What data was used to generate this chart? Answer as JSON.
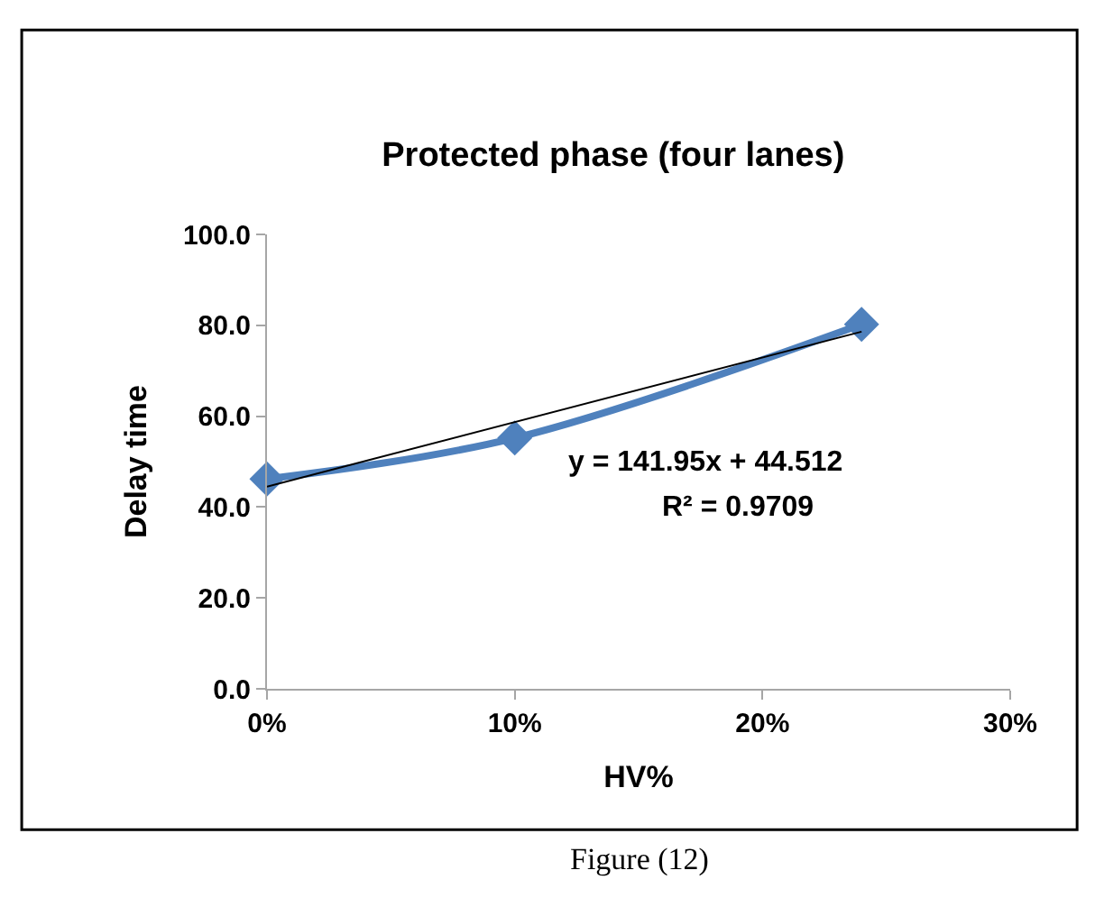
{
  "chart_data": {
    "type": "line",
    "title": "Protected phase (four lanes)",
    "xlabel": "HV%",
    "ylabel": "Delay time",
    "x": [
      0,
      0.1,
      0.24
    ],
    "series": [
      {
        "color": "#4f81bd",
        "values": [
          46.2,
          55.2,
          80.2
        ],
        "marker": "diamond"
      },
      {
        "color": "#000000",
        "x": [
          0,
          0.24
        ],
        "values": [
          44.5,
          78.6
        ],
        "marker": "none"
      }
    ],
    "xlim": [
      0,
      0.3
    ],
    "xticks": [
      {
        "value": 0,
        "label": "0%"
      },
      {
        "value": 0.1,
        "label": "10%"
      },
      {
        "value": 0.2,
        "label": "20%"
      },
      {
        "value": 0.3,
        "label": "30%"
      }
    ],
    "ylim": [
      0,
      100
    ],
    "yticks": [
      {
        "value": 0,
        "label": "0.0"
      },
      {
        "value": 20,
        "label": "20.0"
      },
      {
        "value": 40,
        "label": "40.0"
      },
      {
        "value": 60,
        "label": "60.0"
      },
      {
        "value": 80,
        "label": "80.0"
      },
      {
        "value": 100,
        "label": "100.0"
      }
    ],
    "annotations": [
      "y = 141.95x + 44.512",
      "R² = 0.9709",
      "Figure (12)"
    ]
  }
}
